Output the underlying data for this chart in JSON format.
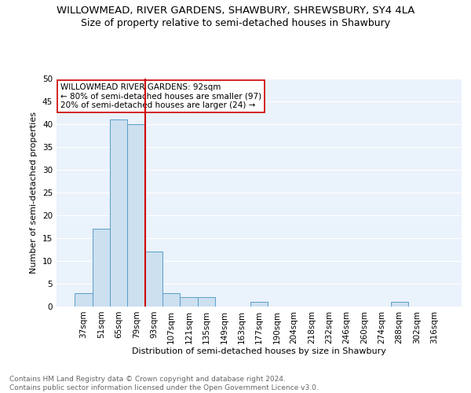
{
  "title": "WILLOWMEAD, RIVER GARDENS, SHAWBURY, SHREWSBURY, SY4 4LA",
  "subtitle": "Size of property relative to semi-detached houses in Shawbury",
  "xlabel": "Distribution of semi-detached houses by size in Shawbury",
  "ylabel": "Number of semi-detached properties",
  "footnote1": "Contains HM Land Registry data © Crown copyright and database right 2024.",
  "footnote2": "Contains public sector information licensed under the Open Government Licence v3.0.",
  "categories": [
    "37sqm",
    "51sqm",
    "65sqm",
    "79sqm",
    "93sqm",
    "107sqm",
    "121sqm",
    "135sqm",
    "149sqm",
    "163sqm",
    "177sqm",
    "190sqm",
    "204sqm",
    "218sqm",
    "232sqm",
    "246sqm",
    "260sqm",
    "274sqm",
    "288sqm",
    "302sqm",
    "316sqm"
  ],
  "values": [
    3,
    17,
    41,
    40,
    12,
    3,
    2,
    2,
    0,
    0,
    1,
    0,
    0,
    0,
    0,
    0,
    0,
    0,
    1,
    0,
    0
  ],
  "bar_color": "#cce0f0",
  "bar_edge_color": "#5a9dc8",
  "subject_line_color": "#cc0000",
  "annotation_text": "WILLOWMEAD RIVER GARDENS: 92sqm\n← 80% of semi-detached houses are smaller (97)\n20% of semi-detached houses are larger (24) →",
  "annotation_box_color": "white",
  "annotation_box_edge_color": "#cc0000",
  "ylim": [
    0,
    50
  ],
  "yticks": [
    0,
    5,
    10,
    15,
    20,
    25,
    30,
    35,
    40,
    45,
    50
  ],
  "bg_color": "#eaf2fb",
  "grid_color": "white",
  "title_fontsize": 9.5,
  "subtitle_fontsize": 9,
  "axis_label_fontsize": 8,
  "tick_fontsize": 7.5,
  "footnote_fontsize": 6.5,
  "annotation_fontsize": 7.5
}
